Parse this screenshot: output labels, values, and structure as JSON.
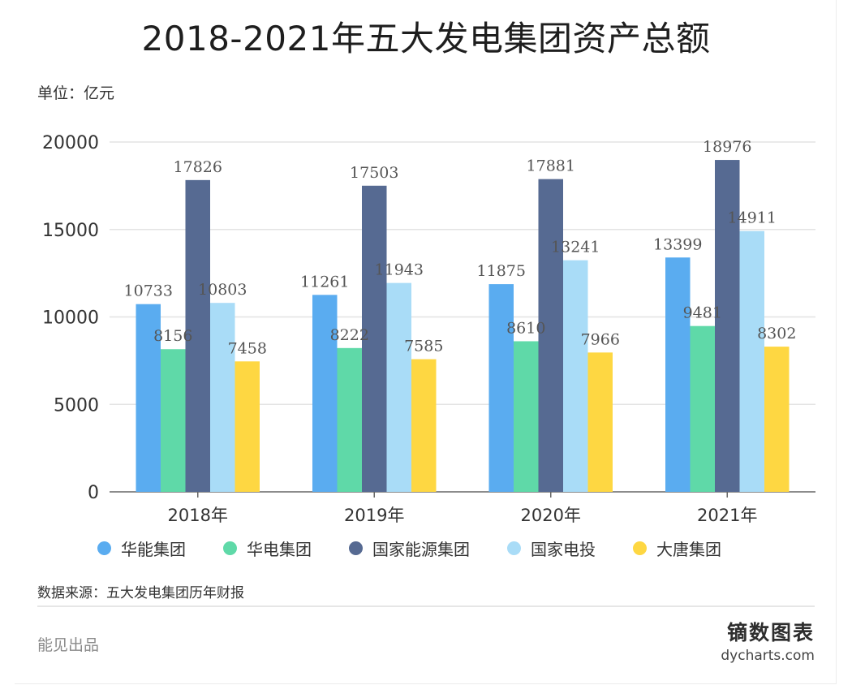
{
  "title": "2018-2021年五大发电集团资产总额",
  "unit_label": "单位：亿元",
  "source_label": "数据来源：五大发电集团历年财报",
  "footer_left": "能见出品",
  "brand": {
    "name": "镝数图表",
    "url": "dycharts.com"
  },
  "chart_data": {
    "type": "bar",
    "title": "2018-2021年五大发电集团资产总额",
    "xlabel": "",
    "ylabel": "",
    "unit": "亿元",
    "categories": [
      "2018年",
      "2019年",
      "2020年",
      "2021年"
    ],
    "ylim": [
      0,
      20000
    ],
    "yticks": [
      0,
      5000,
      10000,
      15000,
      20000
    ],
    "grid": true,
    "legend_position": "bottom",
    "series": [
      {
        "name": "华能集团",
        "color": "#5aacf0",
        "values": [
          10733,
          11261,
          11875,
          13399
        ]
      },
      {
        "name": "华电集团",
        "color": "#5fd9a8",
        "values": [
          8156,
          8222,
          8610,
          9481
        ]
      },
      {
        "name": "国家能源集团",
        "color": "#566a92",
        "values": [
          17826,
          17503,
          17881,
          18976
        ]
      },
      {
        "name": "国家电投",
        "color": "#a9dcf7",
        "values": [
          10803,
          11943,
          13241,
          14911
        ]
      },
      {
        "name": "大唐集团",
        "color": "#fed742",
        "values": [
          7458,
          7585,
          7966,
          8302
        ]
      }
    ]
  }
}
